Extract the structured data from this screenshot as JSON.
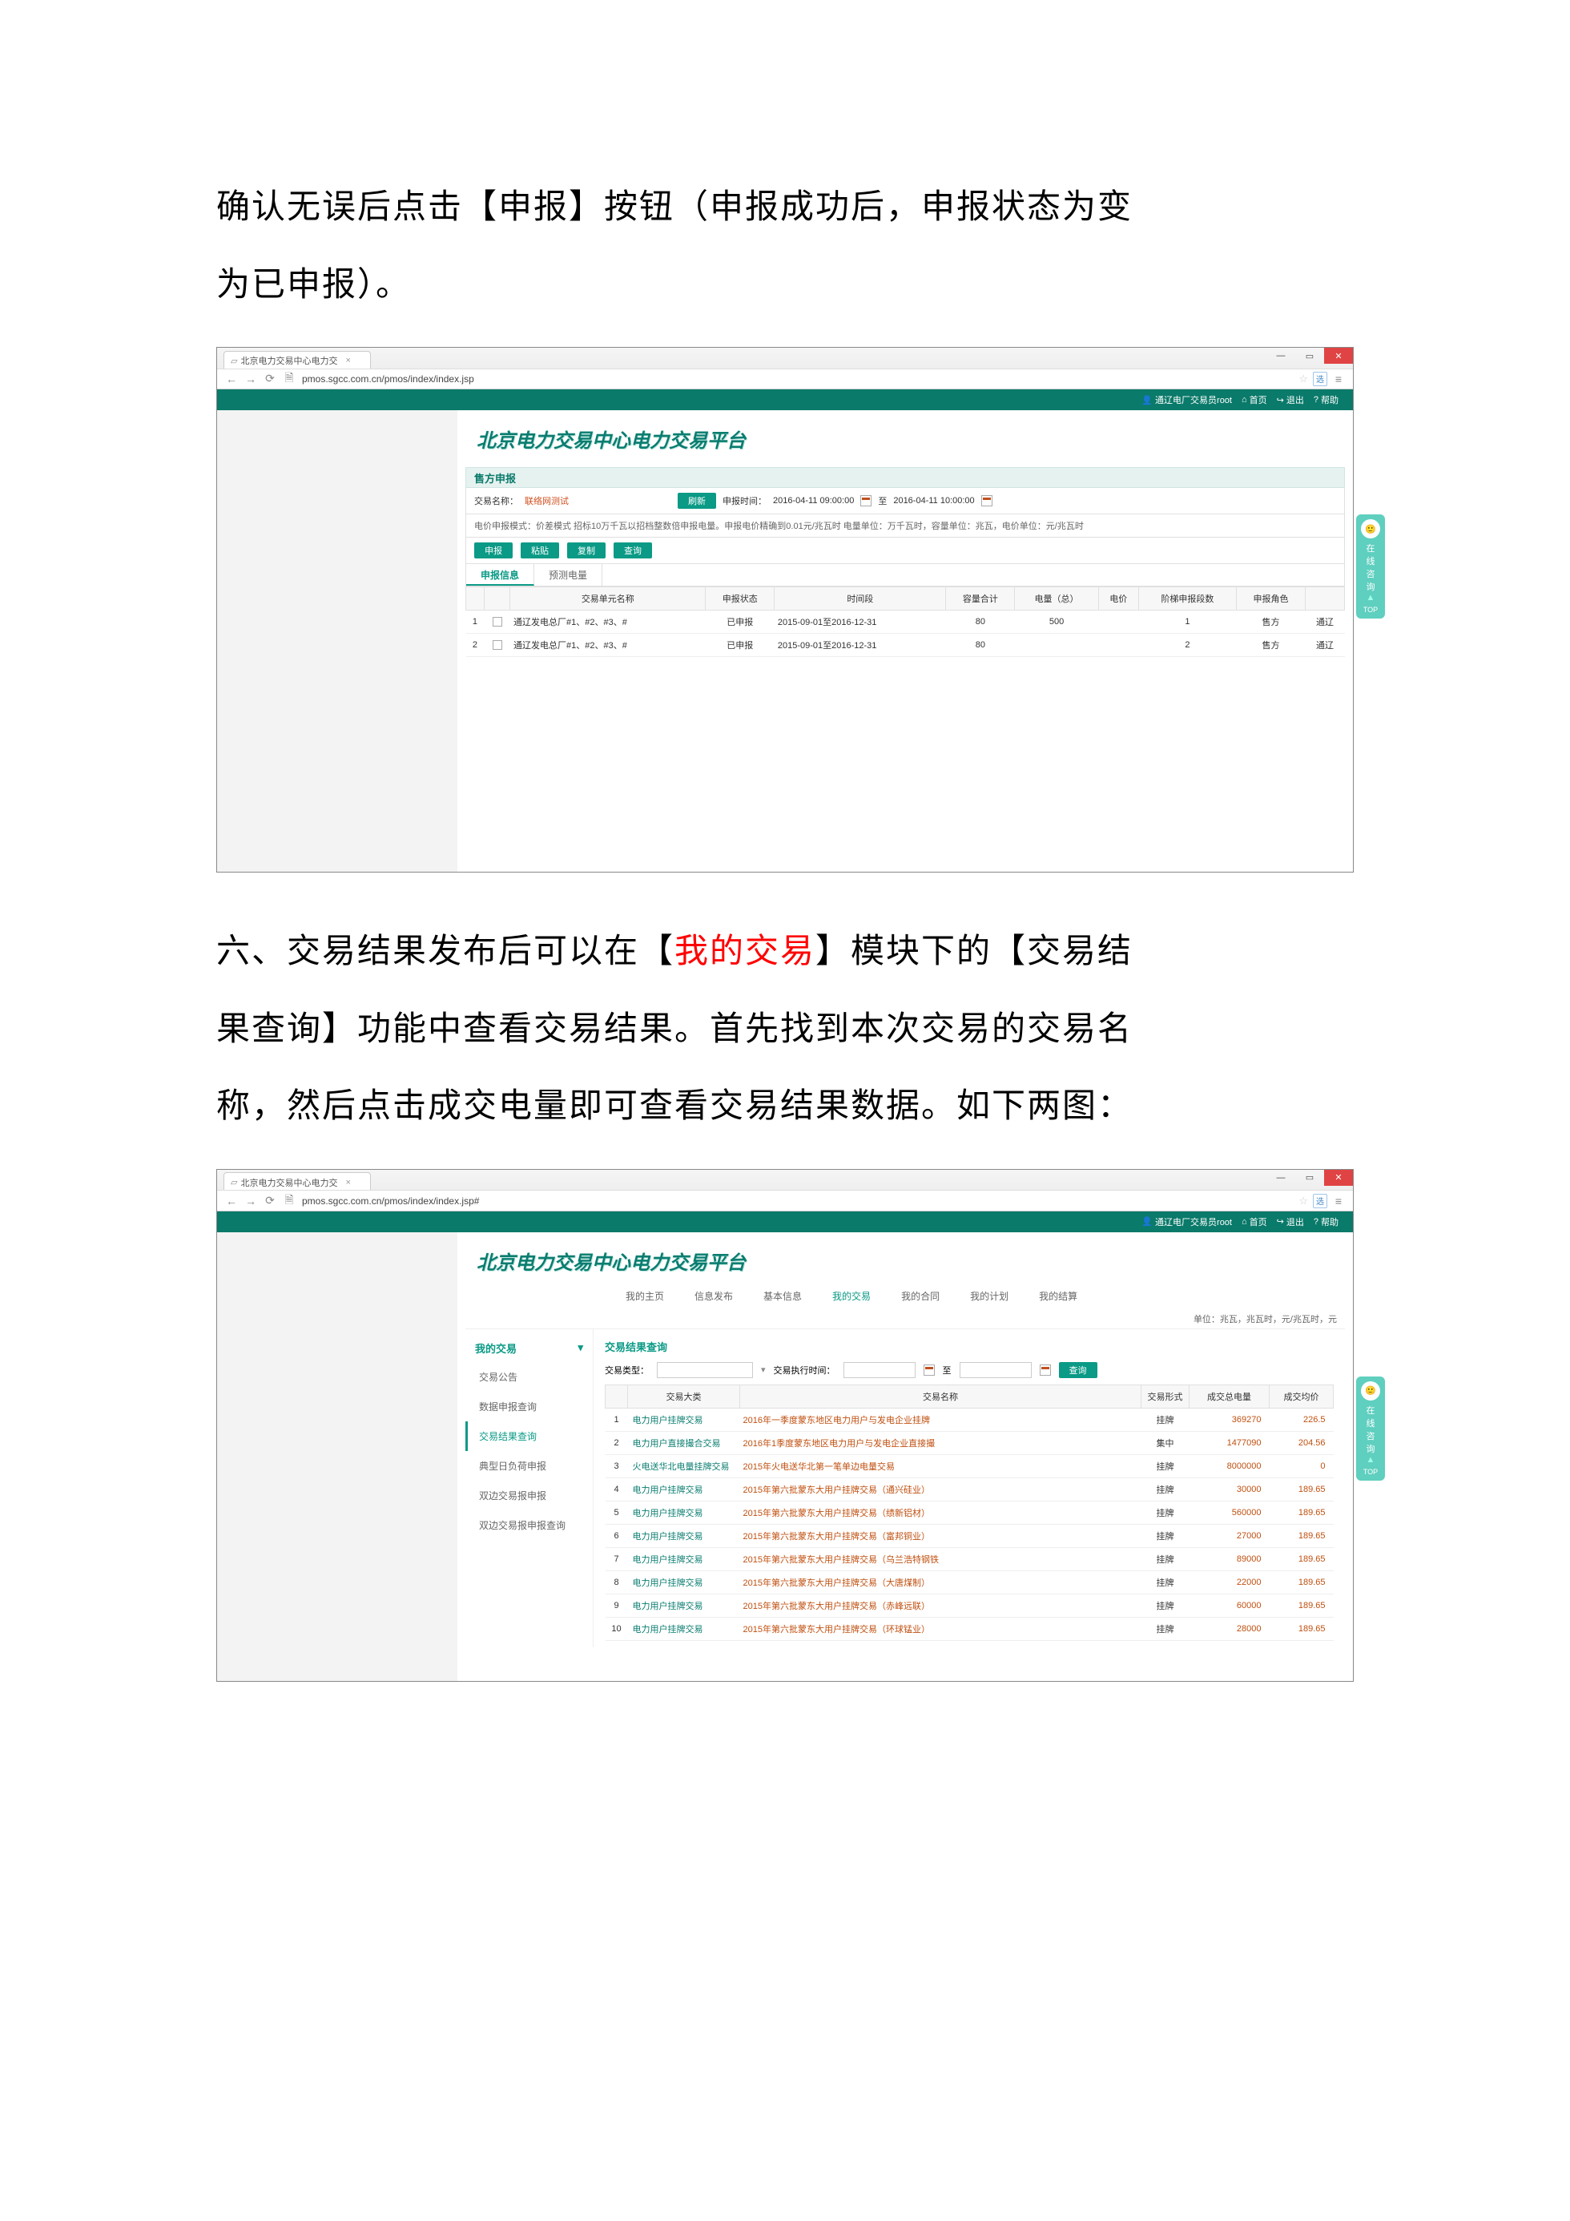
{
  "para1": {
    "p1": "确认无误后点击【申报】按钮（申报成功后，申报状态为变",
    "p2": "为已申报）。"
  },
  "para2": {
    "p1_a": "六、交易结果发布后可以在【",
    "p1_red": "我的交易",
    "p1_b": "】模块下的【交易结",
    "p2": "果查询】功能中查看交易结果。首先找到本次交易的交易名",
    "p3": "称，然后点击成交电量即可查看交易结果数据。如下两图："
  },
  "browser": {
    "tab_title": "北京电力交易中心电力交",
    "url1": "pmos.sgcc.com.cn/pmos/index/index.jsp",
    "url2": "pmos.sgcc.com.cn/pmos/index/index.jsp#",
    "ext": "选"
  },
  "win": {
    "min": "—",
    "max": "▭",
    "close": "✕"
  },
  "topbar": {
    "user": "通辽电厂交易员root",
    "home": "首页",
    "logout": "退出",
    "help": "帮助"
  },
  "platform_title": "北京电力交易中心电力交易平台",
  "s1": {
    "section": "售方申报",
    "label_name": "交易名称：",
    "name_value": "联络网测试",
    "refresh": "刷新",
    "label_time": "申报时间：",
    "time_from": "2016-04-11 09:00:00",
    "to": "至",
    "time_to": "2016-04-11 10:00:00",
    "note": "电价申报模式：价差模式  招标10万千瓦以招档整数倍申报电量。申报电价精确到0.01元/兆瓦时  电量单位：万千瓦时，容量单位：兆瓦，电价单位：元/兆瓦时",
    "btn_submit": "申报",
    "btn_paste": "粘贴",
    "btn_copy": "复制",
    "btn_query": "查询",
    "tab1": "申报信息",
    "tab2": "预测电量",
    "headers": [
      "",
      "",
      "交易单元名称",
      "申报状态",
      "时间段",
      "容量合计",
      "电量（总）",
      "电价",
      "阶梯申报段数",
      "申报角色",
      ""
    ],
    "rows": [
      {
        "idx": "1",
        "unit": "通辽发电总厂#1、#2、#3、#",
        "status": "已申报",
        "period": "2015-09-01至2016-12-31",
        "cap": "80",
        "qty": "500",
        "price": "",
        "step": "1",
        "role": "售方",
        "ext": "通辽"
      },
      {
        "idx": "2",
        "unit": "通辽发电总厂#1、#2、#3、#",
        "status": "已申报",
        "period": "2015-09-01至2016-12-31",
        "cap": "80",
        "qty": "",
        "price": "",
        "step": "2",
        "role": "售方",
        "ext": "通辽"
      }
    ]
  },
  "menu": {
    "m1": "我的主页",
    "m2": "信息发布",
    "m3": "基本信息",
    "m4": "我的交易",
    "m5": "我的合同",
    "m6": "我的计划",
    "m7": "我的结算",
    "unit_note": "单位：兆瓦，兆瓦时，元/兆瓦时，元"
  },
  "s2": {
    "sidebar_title": "我的交易",
    "side_items": [
      "交易公告",
      "数据申报查询",
      "交易结果查询",
      "典型日负荷申报",
      "双边交易报申报",
      "双边交易报申报查询"
    ],
    "panel_title": "交易结果查询",
    "q_type_label": "交易类型：",
    "q_time_label": "交易执行时间：",
    "to": "至",
    "btn_query": "查询",
    "headers": [
      "",
      "交易大类",
      "交易名称",
      "交易形式",
      "成交总电量",
      "成交均价"
    ],
    "rows": [
      {
        "n": "1",
        "cat": "电力用户挂牌交易",
        "name": "2016年一季度蒙东地区电力用户与发电企业挂牌",
        "form": "挂牌",
        "qty": "369270",
        "price": "226.5"
      },
      {
        "n": "2",
        "cat": "电力用户直接撮合交易",
        "name": "2016年1季度蒙东地区电力用户与发电企业直接撮",
        "form": "集中",
        "qty": "1477090",
        "price": "204.56"
      },
      {
        "n": "3",
        "cat": "火电送华北电量挂牌交易",
        "name": "2015年火电送华北第一笔单边电量交易",
        "form": "挂牌",
        "qty": "8000000",
        "price": "0"
      },
      {
        "n": "4",
        "cat": "电力用户挂牌交易",
        "name": "2015年第六批蒙东大用户挂牌交易（通兴硅业）",
        "form": "挂牌",
        "qty": "30000",
        "price": "189.65"
      },
      {
        "n": "5",
        "cat": "电力用户挂牌交易",
        "name": "2015年第六批蒙东大用户挂牌交易（绩新铝材）",
        "form": "挂牌",
        "qty": "560000",
        "price": "189.65"
      },
      {
        "n": "6",
        "cat": "电力用户挂牌交易",
        "name": "2015年第六批蒙东大用户挂牌交易（富邦铜业）",
        "form": "挂牌",
        "qty": "27000",
        "price": "189.65"
      },
      {
        "n": "7",
        "cat": "电力用户挂牌交易",
        "name": "2015年第六批蒙东大用户挂牌交易（乌兰浩特钢铁",
        "form": "挂牌",
        "qty": "89000",
        "price": "189.65"
      },
      {
        "n": "8",
        "cat": "电力用户挂牌交易",
        "name": "2015年第六批蒙东大用户挂牌交易（大唐煤制）",
        "form": "挂牌",
        "qty": "22000",
        "price": "189.65"
      },
      {
        "n": "9",
        "cat": "电力用户挂牌交易",
        "name": "2015年第六批蒙东大用户挂牌交易（赤峰远联）",
        "form": "挂牌",
        "qty": "60000",
        "price": "189.65"
      },
      {
        "n": "10",
        "cat": "电力用户挂牌交易",
        "name": "2015年第六批蒙东大用户挂牌交易（环球锰业）",
        "form": "挂牌",
        "qty": "28000",
        "price": "189.65"
      }
    ]
  },
  "widget": {
    "t1": "在",
    "t2": "线",
    "t3": "咨",
    "t4": "询",
    "top": "TOP"
  }
}
